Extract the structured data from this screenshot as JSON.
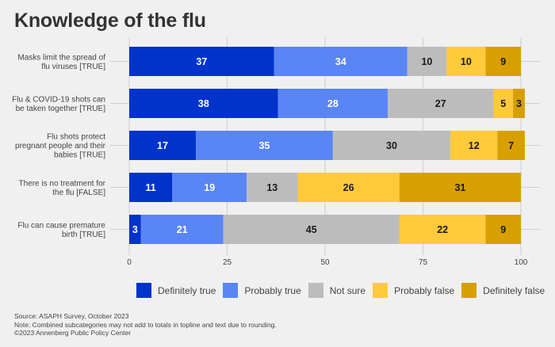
{
  "chart_data": {
    "type": "bar",
    "orientation": "horizontal",
    "stacked": true,
    "title": "Knowledge of the flu",
    "xlabel": "",
    "ylabel": "",
    "xlim": [
      0,
      100
    ],
    "x_ticks": [
      "0",
      "25",
      "50",
      "75",
      "100"
    ],
    "grid": true,
    "legend_position": "bottom",
    "categories": [
      [
        "Masks limit the spread of",
        "flu viruses [TRUE]"
      ],
      [
        "Flu & COVID-19 shots can",
        "be taken together [TRUE]"
      ],
      [
        "Flu shots protect",
        "pregnant people and their",
        "babies [TRUE]"
      ],
      [
        "There is no treatment for",
        "the flu [FALSE]"
      ],
      [
        "Flu can cause premature",
        "birth [TRUE]"
      ]
    ],
    "series": [
      {
        "name": "Definitely true",
        "color": "#0033cc",
        "label_color": "#ffffff",
        "values": [
          37,
          38,
          17,
          11,
          3
        ]
      },
      {
        "name": "Probably true",
        "color": "#5a85f5",
        "label_color": "#ffffff",
        "values": [
          34,
          28,
          35,
          19,
          21
        ]
      },
      {
        "name": "Not sure",
        "color": "#bcbcbc",
        "label_color": "#1a1a1a",
        "values": [
          10,
          27,
          30,
          13,
          45
        ]
      },
      {
        "name": "Probably false",
        "color": "#fec93a",
        "label_color": "#1a1a1a",
        "values": [
          10,
          5,
          12,
          26,
          22
        ]
      },
      {
        "name": "Definitely false",
        "color": "#d89f00",
        "label_color": "#1a1a1a",
        "values": [
          9,
          3,
          7,
          31,
          9
        ]
      }
    ]
  },
  "footer": {
    "source": "Source: ASAPH Survey, October 2023",
    "note": "Note: Combined subcategories may not add to totals in topline and text due to rounding.",
    "copyright": "©2023 Annenberg Public Policy Center"
  }
}
